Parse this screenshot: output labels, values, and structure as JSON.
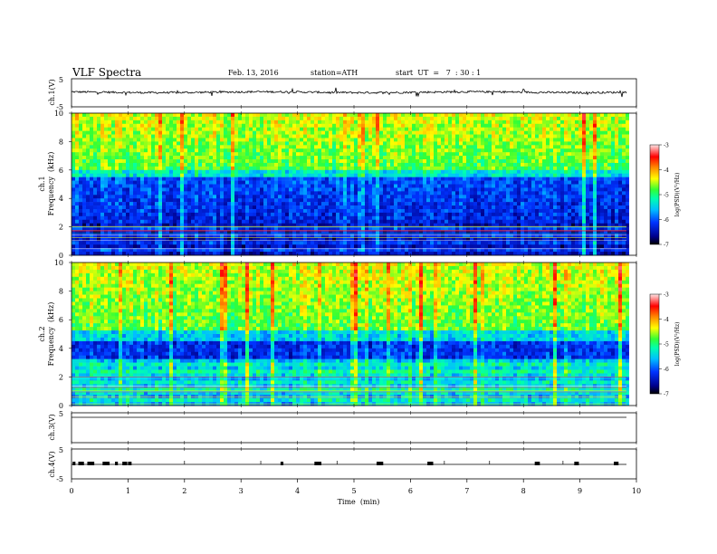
{
  "header": {
    "title": "VLF  Spectra",
    "date": "Feb. 13, 2016",
    "station": "station=ATH",
    "start_ut": "start  UT  =   7  : 30 : 1"
  },
  "chart_data": [
    {
      "id": "ch1-waveform",
      "type": "line",
      "ylabel": "ch.1(V)",
      "ylim": [
        -5,
        5
      ],
      "yticks": [
        5,
        -5
      ],
      "xlim": [
        0,
        10
      ],
      "baseline_value": 0.2
    },
    {
      "id": "ch1-spectrogram",
      "type": "heatmap",
      "ylabel_line1": "ch.1",
      "ylabel_line2": "Frequency  (kHz)",
      "ylim": [
        0,
        10
      ],
      "yticks": [
        "0",
        "2",
        "4",
        "6",
        "8",
        "10"
      ],
      "xlim": [
        0,
        10
      ],
      "colorbar": {
        "label": "log(PSD)(V²/Hz)",
        "ticks": [
          "-3",
          "-4",
          "-5",
          "-6",
          "-7"
        ],
        "range": [
          -7,
          -3
        ]
      }
    },
    {
      "id": "ch2-spectrogram",
      "type": "heatmap",
      "ylabel_line1": "ch.2",
      "ylabel_line2": "Frequency  (kHz)",
      "ylim": [
        0,
        10
      ],
      "yticks": [
        "0",
        "2",
        "4",
        "6",
        "8",
        "10"
      ],
      "xlim": [
        0,
        10
      ],
      "colorbar": {
        "label": "log(PSD)(V²/Hz)",
        "ticks": [
          "-3",
          "-4",
          "-5",
          "-6",
          "-7"
        ],
        "range": [
          -7,
          -3
        ]
      }
    },
    {
      "id": "ch3-waveform",
      "type": "line",
      "ylabel": "ch.3(V)",
      "ylim": [
        -5,
        5
      ],
      "yticks": [
        "5"
      ],
      "xlim": [
        0,
        10
      ],
      "baseline_value": 0
    },
    {
      "id": "ch4-waveform",
      "type": "line",
      "ylabel": "ch.4(V)",
      "ylim": [
        -5,
        5
      ],
      "yticks": [
        "5",
        "-5"
      ],
      "xlim": [
        0,
        10
      ],
      "baseline_value": 0
    }
  ],
  "xaxis": {
    "label": "Time  (min)",
    "ticks": [
      "0",
      "1",
      "2",
      "3",
      "4",
      "5",
      "6",
      "7",
      "8",
      "9",
      "10"
    ],
    "range": [
      0,
      10
    ]
  }
}
